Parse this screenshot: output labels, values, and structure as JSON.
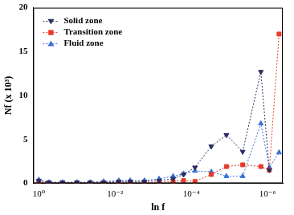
{
  "chart_data": {
    "type": "line",
    "x_label": "ln f",
    "y_label": "Nf (x 10³)",
    "log": "x",
    "grid": false,
    "legend": "upper left",
    "x": [
      1,
      0.54,
      0.24,
      0.1,
      0.045,
      0.02,
      0.008,
      0.004,
      0.0017,
      0.0007,
      0.0003,
      0.00016,
      8e-05,
      3e-05,
      1.2e-05,
      4.5e-06,
      1.5e-06,
      9e-07,
      5e-07
    ],
    "series": [
      {
        "name": "Solid zone",
        "color": "#2b3063",
        "marker": "triangle-down",
        "line_style": "dotted",
        "values": [
          0.3,
          0.1,
          0.1,
          0.1,
          0.1,
          0.1,
          0.2,
          0.2,
          0.2,
          0.3,
          0.5,
          1.0,
          1.8,
          4.2,
          5.5,
          3.6,
          12.7,
          1.5,
          null
        ]
      },
      {
        "name": "Transition zone",
        "color": "#e8392b",
        "marker": "square",
        "line_style": "dotted",
        "values": [
          0.1,
          0.05,
          0.05,
          0.05,
          0.05,
          0.05,
          0.1,
          0.1,
          0.1,
          0.1,
          0.2,
          0.3,
          0.2,
          1.0,
          1.9,
          2.1,
          1.9,
          1.5,
          17.0
        ]
      },
      {
        "name": "Fluid zone",
        "color": "#3a6fd8",
        "marker": "triangle",
        "line_style": "dotted",
        "values": [
          0.4,
          0.1,
          0.1,
          0.1,
          0.1,
          0.2,
          0.3,
          0.3,
          0.3,
          0.5,
          0.8,
          1.1,
          1.4,
          1.3,
          0.8,
          0.8,
          6.8,
          1.8,
          3.5
        ]
      }
    ],
    "xlim": [
      1.4,
      4e-07
    ],
    "xticks": [
      {
        "value": 1,
        "label": "10⁰"
      },
      {
        "value": 0.01,
        "label": "10⁻²"
      },
      {
        "value": 0.0001,
        "label": "10⁻⁴"
      },
      {
        "value": 1e-06,
        "label": "10⁻⁶"
      }
    ],
    "ylim": [
      0,
      20
    ],
    "yticks": [
      0,
      5,
      10,
      15,
      20
    ]
  }
}
